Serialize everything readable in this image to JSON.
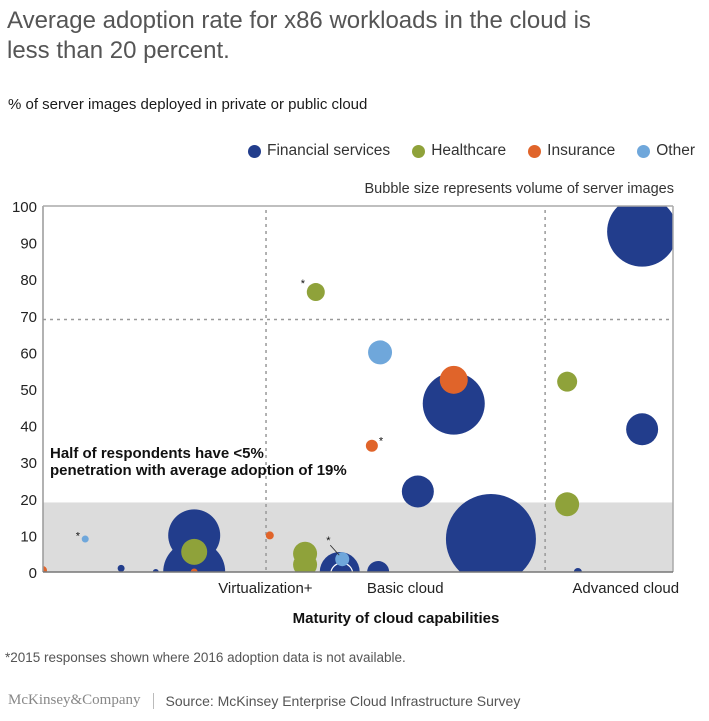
{
  "header": {
    "title": "Average adoption rate for x86 workloads in the cloud is less than 20 percent.",
    "subtitle": "% of server images deployed in private or public cloud"
  },
  "legend": {
    "items": [
      {
        "label": "Financial services",
        "color": "#223d8c"
      },
      {
        "label": "Healthcare",
        "color": "#8fa23a"
      },
      {
        "label": "Insurance",
        "color": "#e0642a"
      },
      {
        "label": "Other",
        "color": "#6fa7db"
      }
    ],
    "size_note": "Bubble size represents volume of server images"
  },
  "chart_data": {
    "type": "scatter",
    "subtype": "bubble",
    "title": "Average adoption rate for x86 workloads in the cloud is less than 20 percent.",
    "ylabel": "% of server images deployed in private or public cloud",
    "xlabel": "Maturity of cloud capabilities",
    "ylim": [
      0,
      100
    ],
    "xlim": [
      0,
      100
    ],
    "y_ticks": [
      0,
      10,
      20,
      30,
      40,
      50,
      60,
      70,
      80,
      90,
      100
    ],
    "x_category_labels": [
      {
        "label": "Virtualization+",
        "x": 35.3
      },
      {
        "label": "Basic cloud",
        "x": 57.5
      },
      {
        "label": "Advanced cloud",
        "x": 92.5
      }
    ],
    "reference_lines": {
      "horizontal": [
        {
          "y": 69,
          "style": "dotted"
        }
      ],
      "vertical": [
        {
          "x": 35.4,
          "style": "dotted"
        },
        {
          "x": 79.7,
          "style": "dotted"
        }
      ]
    },
    "shaded_band": {
      "y_from": 0,
      "y_to": 19,
      "color": "#dcdcdc"
    },
    "annotation": {
      "text_lines": [
        "Half of respondents have <5%",
        "penetration with average adoption of 19%"
      ]
    },
    "grid": false,
    "bubble_size_meaning": "Volume of server images (relative)",
    "series": [
      {
        "name": "Financial services",
        "color": "#223d8c",
        "points": [
          {
            "x": 12.4,
            "y": 1,
            "size": 3.5
          },
          {
            "x": 17.9,
            "y": 0,
            "size": 3
          },
          {
            "x": 24.0,
            "y": 10,
            "size": 26
          },
          {
            "x": 24.0,
            "y": 0,
            "size": 31
          },
          {
            "x": 47.1,
            "y": 0,
            "size": 20,
            "ring": true
          },
          {
            "x": 53.2,
            "y": 0,
            "size": 11
          },
          {
            "x": 59.5,
            "y": 22,
            "size": 16
          },
          {
            "x": 65.2,
            "y": 46,
            "size": 31
          },
          {
            "x": 71.1,
            "y": 9,
            "size": 45
          },
          {
            "x": 84.9,
            "y": 0,
            "size": 4
          },
          {
            "x": 95.1,
            "y": 93,
            "size": 35
          },
          {
            "x": 95.1,
            "y": 39,
            "size": 16
          }
        ]
      },
      {
        "name": "Healthcare",
        "color": "#8fa23a",
        "points": [
          {
            "x": 24.0,
            "y": 5.5,
            "size": 13
          },
          {
            "x": 41.6,
            "y": 5,
            "size": 12
          },
          {
            "x": 41.6,
            "y": 2,
            "size": 12
          },
          {
            "x": 43.3,
            "y": 76.5,
            "size": 9,
            "note": "*"
          },
          {
            "x": 83.2,
            "y": 52,
            "size": 10
          },
          {
            "x": 83.2,
            "y": 18.5,
            "size": 12
          }
        ]
      },
      {
        "name": "Insurance",
        "color": "#e0642a",
        "points": [
          {
            "x": 0,
            "y": 0.5,
            "size": 4
          },
          {
            "x": 24.0,
            "y": 0,
            "size": 3.5
          },
          {
            "x": 36.0,
            "y": 10,
            "size": 4
          },
          {
            "x": 52.2,
            "y": 34.5,
            "size": 6,
            "note": "*"
          },
          {
            "x": 65.2,
            "y": 52.5,
            "size": 14
          }
        ]
      },
      {
        "name": "Other",
        "color": "#6fa7db",
        "points": [
          {
            "x": 6.7,
            "y": 9,
            "size": 3.5,
            "note": "*"
          },
          {
            "x": 47.5,
            "y": 3.5,
            "size": 7,
            "note": "*"
          },
          {
            "x": 53.5,
            "y": 60,
            "size": 12
          }
        ]
      }
    ]
  },
  "footer": {
    "footnote": "*2015 responses shown where 2016 adoption data is not available.",
    "brand": "McKinsey&Company",
    "source": "Source: McKinsey Enterprise Cloud Infrastructure Survey"
  }
}
